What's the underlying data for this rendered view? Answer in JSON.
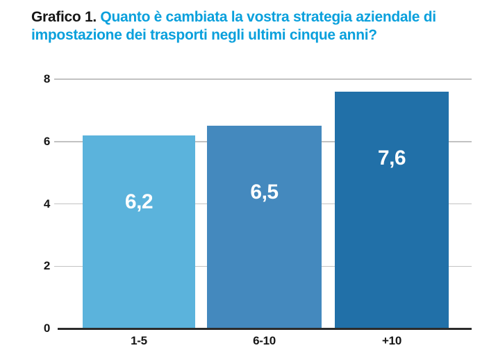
{
  "title": {
    "prefix": "Grafico 1.",
    "question": "Quanto è cambiata la vostra strategia aziendale di impostazione dei trasporti negli ultimi cinque anni?"
  },
  "colors": {
    "title_prefix": "#161616",
    "title_accent": "#0aa0dc",
    "bar_colors": [
      "#5bb3dc",
      "#4489be",
      "#2170a8"
    ],
    "gridline": "#c2c2c2",
    "axis_line": "#2b2b2b",
    "tick_text": "#161616",
    "value_label_text": "#ffffff"
  },
  "chart_data": {
    "type": "bar",
    "title": "Grafico 1. Quanto è cambiata la vostra strategia aziendale di impostazione dei trasporti negli ultimi cinque anni?",
    "categories": [
      "1-5",
      "6-10",
      "+10"
    ],
    "values": [
      6.2,
      6.5,
      7.6
    ],
    "value_labels": [
      "6,2",
      "6,5",
      "7,6"
    ],
    "series_colors": [
      "#5bb3dc",
      "#4489be",
      "#2170a8"
    ],
    "xlabel": "",
    "ylabel": "",
    "ylim": [
      0,
      8
    ],
    "yticks": [
      0,
      2,
      4,
      6,
      8
    ],
    "grid": true,
    "legend": false
  }
}
